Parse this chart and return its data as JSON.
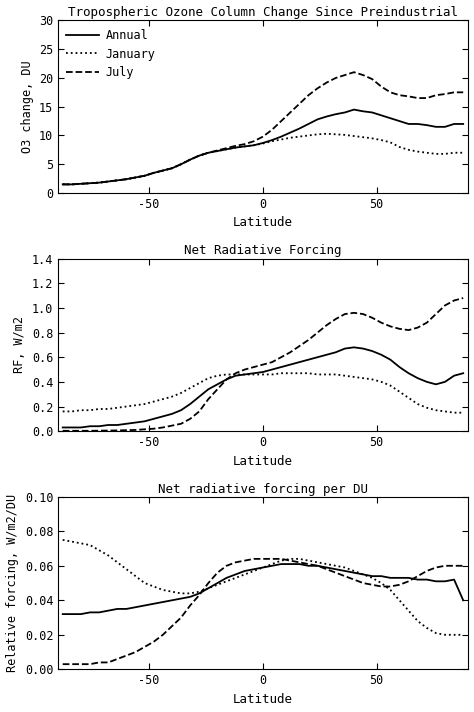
{
  "title1": "Tropospheric Ozone Column Change Since Preindustrial",
  "title2": "Net Radiative Forcing",
  "title3": "Net radiative forcing per DU",
  "ylabel1": "O3 change, DU",
  "ylabel2": "RF, W/m2",
  "ylabel3": "Relative forcing, W/m2/DU",
  "xlabel": "Latitude",
  "legend_labels": [
    "Annual",
    "January",
    "July"
  ],
  "lat": [
    -88,
    -84,
    -80,
    -76,
    -72,
    -68,
    -64,
    -60,
    -56,
    -52,
    -48,
    -44,
    -40,
    -36,
    -32,
    -28,
    -24,
    -20,
    -16,
    -12,
    -8,
    -4,
    0,
    4,
    8,
    12,
    16,
    20,
    24,
    28,
    32,
    36,
    40,
    44,
    48,
    52,
    56,
    60,
    64,
    68,
    72,
    76,
    80,
    84,
    88
  ],
  "panel1_annual": [
    1.5,
    1.5,
    1.6,
    1.7,
    1.8,
    2.0,
    2.2,
    2.4,
    2.7,
    3.0,
    3.5,
    3.9,
    4.3,
    5.0,
    5.8,
    6.5,
    7.0,
    7.3,
    7.6,
    7.9,
    8.1,
    8.3,
    8.7,
    9.2,
    9.8,
    10.5,
    11.2,
    12.0,
    12.8,
    13.3,
    13.7,
    14.0,
    14.5,
    14.2,
    14.0,
    13.5,
    13.0,
    12.5,
    12.0,
    12.0,
    11.8,
    11.5,
    11.5,
    12.0,
    12.0
  ],
  "panel1_january": [
    1.5,
    1.5,
    1.6,
    1.7,
    1.8,
    2.0,
    2.2,
    2.4,
    2.7,
    3.0,
    3.5,
    3.9,
    4.3,
    5.0,
    5.8,
    6.5,
    7.0,
    7.3,
    7.6,
    7.9,
    8.1,
    8.3,
    8.6,
    9.0,
    9.3,
    9.6,
    9.8,
    10.0,
    10.2,
    10.3,
    10.2,
    10.1,
    9.9,
    9.7,
    9.5,
    9.2,
    8.8,
    8.0,
    7.5,
    7.2,
    7.0,
    6.8,
    6.8,
    7.0,
    7.0
  ],
  "panel1_july": [
    1.5,
    1.5,
    1.6,
    1.7,
    1.8,
    2.0,
    2.2,
    2.4,
    2.7,
    3.0,
    3.5,
    3.9,
    4.3,
    5.0,
    5.8,
    6.5,
    7.0,
    7.4,
    7.8,
    8.2,
    8.5,
    9.0,
    9.8,
    11.0,
    12.5,
    14.0,
    15.5,
    17.0,
    18.2,
    19.2,
    20.0,
    20.5,
    21.0,
    20.5,
    19.8,
    18.5,
    17.5,
    17.0,
    16.8,
    16.5,
    16.5,
    17.0,
    17.2,
    17.5,
    17.5
  ],
  "panel2_annual": [
    0.03,
    0.03,
    0.03,
    0.04,
    0.04,
    0.05,
    0.05,
    0.06,
    0.07,
    0.08,
    0.1,
    0.12,
    0.14,
    0.17,
    0.22,
    0.28,
    0.34,
    0.38,
    0.42,
    0.45,
    0.46,
    0.47,
    0.48,
    0.5,
    0.52,
    0.54,
    0.56,
    0.58,
    0.6,
    0.62,
    0.64,
    0.67,
    0.68,
    0.67,
    0.65,
    0.62,
    0.58,
    0.52,
    0.47,
    0.43,
    0.4,
    0.38,
    0.4,
    0.45,
    0.47
  ],
  "panel2_january": [
    0.16,
    0.16,
    0.17,
    0.17,
    0.18,
    0.18,
    0.19,
    0.2,
    0.21,
    0.22,
    0.24,
    0.26,
    0.28,
    0.31,
    0.35,
    0.39,
    0.43,
    0.45,
    0.46,
    0.46,
    0.46,
    0.46,
    0.46,
    0.46,
    0.47,
    0.47,
    0.47,
    0.47,
    0.46,
    0.46,
    0.46,
    0.45,
    0.44,
    0.43,
    0.42,
    0.4,
    0.37,
    0.32,
    0.27,
    0.22,
    0.19,
    0.17,
    0.16,
    0.15,
    0.15
  ],
  "panel2_july": [
    0.003,
    0.003,
    0.003,
    0.003,
    0.004,
    0.005,
    0.006,
    0.008,
    0.01,
    0.015,
    0.02,
    0.03,
    0.045,
    0.06,
    0.1,
    0.16,
    0.26,
    0.34,
    0.42,
    0.47,
    0.5,
    0.52,
    0.54,
    0.56,
    0.6,
    0.64,
    0.69,
    0.74,
    0.8,
    0.86,
    0.91,
    0.95,
    0.96,
    0.95,
    0.92,
    0.88,
    0.85,
    0.83,
    0.82,
    0.84,
    0.88,
    0.95,
    1.02,
    1.06,
    1.08
  ],
  "panel3_annual": [
    0.032,
    0.032,
    0.032,
    0.033,
    0.033,
    0.034,
    0.035,
    0.035,
    0.036,
    0.037,
    0.038,
    0.039,
    0.04,
    0.041,
    0.042,
    0.044,
    0.047,
    0.05,
    0.053,
    0.055,
    0.057,
    0.058,
    0.059,
    0.06,
    0.061,
    0.061,
    0.061,
    0.06,
    0.06,
    0.059,
    0.058,
    0.057,
    0.056,
    0.055,
    0.054,
    0.054,
    0.053,
    0.053,
    0.053,
    0.052,
    0.052,
    0.051,
    0.051,
    0.052,
    0.04
  ],
  "panel3_january": [
    0.075,
    0.074,
    0.073,
    0.072,
    0.069,
    0.066,
    0.062,
    0.058,
    0.054,
    0.05,
    0.048,
    0.046,
    0.045,
    0.044,
    0.044,
    0.045,
    0.047,
    0.049,
    0.051,
    0.053,
    0.055,
    0.057,
    0.059,
    0.061,
    0.063,
    0.064,
    0.064,
    0.063,
    0.062,
    0.061,
    0.06,
    0.059,
    0.057,
    0.055,
    0.053,
    0.05,
    0.046,
    0.04,
    0.034,
    0.028,
    0.024,
    0.021,
    0.02,
    0.02,
    0.02
  ],
  "panel3_july": [
    0.003,
    0.003,
    0.003,
    0.003,
    0.004,
    0.004,
    0.006,
    0.008,
    0.01,
    0.013,
    0.016,
    0.02,
    0.025,
    0.03,
    0.037,
    0.043,
    0.05,
    0.056,
    0.06,
    0.062,
    0.063,
    0.064,
    0.064,
    0.064,
    0.064,
    0.063,
    0.062,
    0.061,
    0.06,
    0.058,
    0.056,
    0.054,
    0.052,
    0.05,
    0.049,
    0.048,
    0.048,
    0.049,
    0.051,
    0.054,
    0.057,
    0.059,
    0.06,
    0.06,
    0.06
  ],
  "ylim1": [
    0,
    30
  ],
  "ylim2": [
    0.0,
    1.4
  ],
  "ylim3": [
    0.0,
    0.1
  ],
  "yticks1": [
    0,
    5,
    10,
    15,
    20,
    25,
    30
  ],
  "yticks2": [
    0.0,
    0.2,
    0.4,
    0.6,
    0.8,
    1.0,
    1.2,
    1.4
  ],
  "yticks3": [
    0.0,
    0.02,
    0.04,
    0.06,
    0.08,
    0.1
  ],
  "xlim": [
    -90,
    90
  ],
  "xticks": [
    -50,
    0,
    50
  ],
  "xtick_labels": [
    "-50",
    "0",
    "50"
  ],
  "bg_color": "#ffffff",
  "line_color": "#000000"
}
